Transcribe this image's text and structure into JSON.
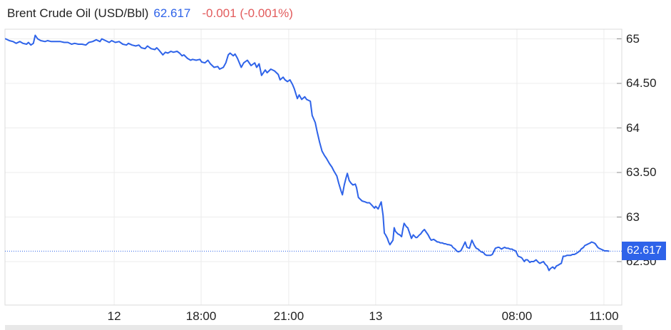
{
  "header": {
    "title": "Brent Crude Oil (USD/Bbl)",
    "price": "62.617",
    "change": "-0.001 (-0.001%)"
  },
  "badge": {
    "label": "62.617"
  },
  "colors": {
    "accent_blue": "#2E63E9",
    "change_red": "#E25B5C",
    "grid": "#ECECEC",
    "plot_border": "#DBDBDB",
    "tick": "#8C8C8C",
    "axis_text": "#222222",
    "badge_bg": "#2E63E9",
    "badge_text": "#FFFFFF",
    "bottom_strip": "#E8E8E8"
  },
  "chart_data": {
    "type": "line",
    "title": "Brent Crude Oil (USD/Bbl)",
    "last_price": 62.617,
    "change": -0.001,
    "change_percent": -0.001,
    "grid": true,
    "legend": "none",
    "ylim": [
      62.012,
      65.108
    ],
    "y_ticks": [
      {
        "label": "65",
        "value": 65.0
      },
      {
        "label": "64.50",
        "value": 64.5
      },
      {
        "label": "64",
        "value": 64.0
      },
      {
        "label": "63.50",
        "value": 63.5
      },
      {
        "label": "63",
        "value": 63.0
      },
      {
        "label": "62.50",
        "value": 62.5
      }
    ],
    "x_ticks": [
      {
        "label": "12",
        "pos": 0.177
      },
      {
        "label": "18:00",
        "pos": 0.318
      },
      {
        "label": "21:00",
        "pos": 0.46
      },
      {
        "label": "13",
        "pos": 0.601
      },
      {
        "label": "08:00",
        "pos": 0.83
      },
      {
        "label": "11:00",
        "pos": 0.971
      }
    ],
    "last_price_line": {
      "style": "dotted",
      "value": 62.617
    },
    "series": [
      {
        "name": "Brent Crude Oil (USD/Bbl)",
        "color": "#2E63E9",
        "points": [
          [
            0.001,
            65.0
          ],
          [
            0.007,
            64.98
          ],
          [
            0.013,
            64.97
          ],
          [
            0.018,
            64.95
          ],
          [
            0.024,
            64.97
          ],
          [
            0.029,
            64.95
          ],
          [
            0.035,
            64.94
          ],
          [
            0.038,
            64.96
          ],
          [
            0.042,
            64.93
          ],
          [
            0.046,
            64.95
          ],
          [
            0.049,
            65.04
          ],
          [
            0.053,
            65.0
          ],
          [
            0.058,
            64.98
          ],
          [
            0.065,
            64.97
          ],
          [
            0.069,
            64.98
          ],
          [
            0.075,
            64.97
          ],
          [
            0.081,
            64.97
          ],
          [
            0.09,
            64.97
          ],
          [
            0.096,
            64.96
          ],
          [
            0.102,
            64.96
          ],
          [
            0.108,
            64.94
          ],
          [
            0.113,
            64.95
          ],
          [
            0.119,
            64.94
          ],
          [
            0.125,
            64.94
          ],
          [
            0.131,
            64.93
          ],
          [
            0.136,
            64.96
          ],
          [
            0.142,
            64.97
          ],
          [
            0.148,
            64.99
          ],
          [
            0.154,
            64.97
          ],
          [
            0.157,
            65.0
          ],
          [
            0.163,
            64.98
          ],
          [
            0.169,
            64.96
          ],
          [
            0.173,
            64.98
          ],
          [
            0.179,
            64.96
          ],
          [
            0.185,
            64.97
          ],
          [
            0.191,
            64.94
          ],
          [
            0.197,
            64.93
          ],
          [
            0.2,
            64.95
          ],
          [
            0.206,
            64.93
          ],
          [
            0.212,
            64.92
          ],
          [
            0.217,
            64.93
          ],
          [
            0.221,
            64.9
          ],
          [
            0.227,
            64.89
          ],
          [
            0.231,
            64.92
          ],
          [
            0.237,
            64.89
          ],
          [
            0.243,
            64.88
          ],
          [
            0.246,
            64.9
          ],
          [
            0.25,
            64.87
          ],
          [
            0.256,
            64.82
          ],
          [
            0.26,
            64.85
          ],
          [
            0.264,
            64.84
          ],
          [
            0.269,
            64.86
          ],
          [
            0.273,
            64.85
          ],
          [
            0.279,
            64.86
          ],
          [
            0.283,
            64.84
          ],
          [
            0.287,
            64.81
          ],
          [
            0.29,
            64.82
          ],
          [
            0.296,
            64.78
          ],
          [
            0.301,
            64.76
          ],
          [
            0.304,
            64.77
          ],
          [
            0.31,
            64.76
          ],
          [
            0.316,
            64.77
          ],
          [
            0.319,
            64.74
          ],
          [
            0.324,
            64.73
          ],
          [
            0.329,
            64.76
          ],
          [
            0.333,
            64.72
          ],
          [
            0.339,
            64.68
          ],
          [
            0.345,
            64.69
          ],
          [
            0.348,
            64.66
          ],
          [
            0.354,
            64.68
          ],
          [
            0.358,
            64.73
          ],
          [
            0.362,
            64.82
          ],
          [
            0.365,
            64.84
          ],
          [
            0.37,
            64.81
          ],
          [
            0.373,
            64.83
          ],
          [
            0.377,
            64.78
          ],
          [
            0.383,
            64.68
          ],
          [
            0.387,
            64.73
          ],
          [
            0.393,
            64.76
          ],
          [
            0.399,
            64.7
          ],
          [
            0.405,
            64.73
          ],
          [
            0.408,
            64.68
          ],
          [
            0.412,
            64.72
          ],
          [
            0.416,
            64.59
          ],
          [
            0.422,
            64.65
          ],
          [
            0.425,
            64.62
          ],
          [
            0.431,
            64.66
          ],
          [
            0.437,
            64.64
          ],
          [
            0.443,
            64.6
          ],
          [
            0.446,
            64.54
          ],
          [
            0.451,
            64.57
          ],
          [
            0.454,
            64.54
          ],
          [
            0.458,
            64.52
          ],
          [
            0.462,
            64.54
          ],
          [
            0.466,
            64.49
          ],
          [
            0.469,
            64.44
          ],
          [
            0.474,
            64.33
          ],
          [
            0.477,
            64.37
          ],
          [
            0.481,
            64.32
          ],
          [
            0.486,
            64.35
          ],
          [
            0.489,
            64.32
          ],
          [
            0.495,
            64.3
          ],
          [
            0.498,
            64.14
          ],
          [
            0.503,
            64.06
          ],
          [
            0.506,
            63.96
          ],
          [
            0.51,
            63.84
          ],
          [
            0.514,
            63.74
          ],
          [
            0.518,
            63.69
          ],
          [
            0.521,
            63.66
          ],
          [
            0.526,
            63.6
          ],
          [
            0.53,
            63.56
          ],
          [
            0.533,
            63.52
          ],
          [
            0.538,
            63.46
          ],
          [
            0.541,
            63.38
          ],
          [
            0.545,
            63.29
          ],
          [
            0.547,
            63.25
          ],
          [
            0.55,
            63.36
          ],
          [
            0.553,
            63.44
          ],
          [
            0.555,
            63.49
          ],
          [
            0.558,
            63.41
          ],
          [
            0.561,
            63.38
          ],
          [
            0.564,
            63.36
          ],
          [
            0.568,
            63.37
          ],
          [
            0.57,
            63.33
          ],
          [
            0.573,
            63.22
          ],
          [
            0.576,
            63.2
          ],
          [
            0.579,
            63.18
          ],
          [
            0.584,
            63.17
          ],
          [
            0.587,
            63.16
          ],
          [
            0.591,
            63.16
          ],
          [
            0.595,
            63.13
          ],
          [
            0.599,
            63.1
          ],
          [
            0.601,
            63.12
          ],
          [
            0.605,
            63.09
          ],
          [
            0.608,
            63.14
          ],
          [
            0.61,
            63.17
          ],
          [
            0.613,
            63.02
          ],
          [
            0.615,
            62.82
          ],
          [
            0.617,
            62.8
          ],
          [
            0.62,
            62.76
          ],
          [
            0.622,
            62.72
          ],
          [
            0.624,
            62.69
          ],
          [
            0.627,
            62.72
          ],
          [
            0.629,
            62.74
          ],
          [
            0.631,
            62.88
          ],
          [
            0.633,
            62.84
          ],
          [
            0.637,
            62.81
          ],
          [
            0.64,
            62.8
          ],
          [
            0.643,
            62.78
          ],
          [
            0.645,
            62.86
          ],
          [
            0.647,
            62.93
          ],
          [
            0.651,
            62.89
          ],
          [
            0.653,
            62.88
          ],
          [
            0.657,
            62.8
          ],
          [
            0.659,
            62.76
          ],
          [
            0.662,
            62.8
          ],
          [
            0.666,
            62.77
          ],
          [
            0.668,
            62.77
          ],
          [
            0.672,
            62.8
          ],
          [
            0.674,
            62.81
          ],
          [
            0.677,
            62.84
          ],
          [
            0.68,
            62.86
          ],
          [
            0.683,
            62.83
          ],
          [
            0.686,
            62.8
          ],
          [
            0.689,
            62.76
          ],
          [
            0.691,
            62.74
          ],
          [
            0.695,
            62.75
          ],
          [
            0.697,
            62.74
          ],
          [
            0.701,
            62.72
          ],
          [
            0.703,
            62.72
          ],
          [
            0.706,
            62.71
          ],
          [
            0.709,
            62.71
          ],
          [
            0.712,
            62.7
          ],
          [
            0.714,
            62.7
          ],
          [
            0.718,
            62.69
          ],
          [
            0.72,
            62.69
          ],
          [
            0.724,
            62.68
          ],
          [
            0.726,
            62.66
          ],
          [
            0.73,
            62.64
          ],
          [
            0.732,
            62.62
          ],
          [
            0.735,
            62.61
          ],
          [
            0.739,
            62.62
          ],
          [
            0.742,
            62.66
          ],
          [
            0.746,
            62.72
          ],
          [
            0.749,
            62.66
          ],
          [
            0.753,
            62.65
          ],
          [
            0.757,
            62.74
          ],
          [
            0.761,
            62.68
          ],
          [
            0.764,
            62.65
          ],
          [
            0.767,
            62.64
          ],
          [
            0.77,
            62.62
          ],
          [
            0.772,
            62.61
          ],
          [
            0.776,
            62.6
          ],
          [
            0.778,
            62.58
          ],
          [
            0.781,
            62.57
          ],
          [
            0.784,
            62.57
          ],
          [
            0.787,
            62.57
          ],
          [
            0.79,
            62.58
          ],
          [
            0.793,
            62.62
          ],
          [
            0.795,
            62.65
          ],
          [
            0.799,
            62.66
          ],
          [
            0.801,
            62.66
          ],
          [
            0.805,
            62.64
          ],
          [
            0.807,
            62.65
          ],
          [
            0.81,
            62.66
          ],
          [
            0.813,
            62.65
          ],
          [
            0.816,
            62.65
          ],
          [
            0.819,
            62.64
          ],
          [
            0.822,
            62.64
          ],
          [
            0.824,
            62.63
          ],
          [
            0.828,
            62.62
          ],
          [
            0.83,
            62.59
          ],
          [
            0.832,
            62.56
          ],
          [
            0.836,
            62.55
          ],
          [
            0.838,
            62.54
          ],
          [
            0.842,
            62.5
          ],
          [
            0.844,
            62.52
          ],
          [
            0.847,
            62.52
          ],
          [
            0.851,
            62.49
          ],
          [
            0.853,
            62.5
          ],
          [
            0.857,
            62.5
          ],
          [
            0.859,
            62.51
          ],
          [
            0.861,
            62.52
          ],
          [
            0.865,
            62.49
          ],
          [
            0.867,
            62.48
          ],
          [
            0.87,
            62.49
          ],
          [
            0.873,
            62.5
          ],
          [
            0.876,
            62.47
          ],
          [
            0.879,
            62.45
          ],
          [
            0.882,
            62.4
          ],
          [
            0.884,
            62.42
          ],
          [
            0.888,
            62.44
          ],
          [
            0.891,
            62.42
          ],
          [
            0.894,
            62.45
          ],
          [
            0.897,
            62.46
          ],
          [
            0.899,
            62.47
          ],
          [
            0.902,
            62.48
          ],
          [
            0.905,
            62.56
          ],
          [
            0.908,
            62.56
          ],
          [
            0.911,
            62.57
          ],
          [
            0.914,
            62.57
          ],
          [
            0.917,
            62.57
          ],
          [
            0.92,
            62.58
          ],
          [
            0.923,
            62.58
          ],
          [
            0.926,
            62.59
          ],
          [
            0.928,
            62.6
          ],
          [
            0.932,
            62.62
          ],
          [
            0.934,
            62.64
          ],
          [
            0.938,
            62.66
          ],
          [
            0.94,
            62.68
          ],
          [
            0.943,
            62.69
          ],
          [
            0.946,
            62.7
          ],
          [
            0.949,
            62.71
          ],
          [
            0.951,
            62.72
          ],
          [
            0.955,
            62.71
          ],
          [
            0.957,
            62.7
          ],
          [
            0.961,
            62.66
          ],
          [
            0.963,
            62.65
          ],
          [
            0.966,
            62.64
          ],
          [
            0.969,
            62.63
          ],
          [
            0.972,
            62.62
          ],
          [
            0.976,
            62.62
          ],
          [
            0.979,
            62.617
          ]
        ]
      }
    ]
  }
}
